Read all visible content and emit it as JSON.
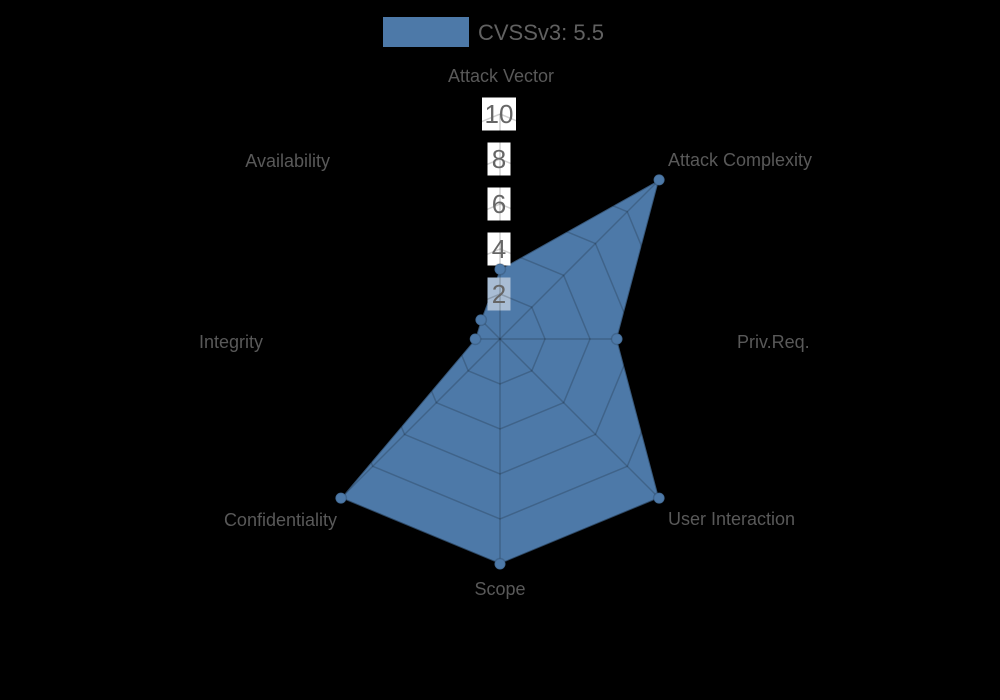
{
  "page": {
    "background": "#000000"
  },
  "legend": {
    "label": "CVSSv3: 5.5",
    "swatch_color": "#4d79a8"
  },
  "chart_data": {
    "type": "radar",
    "title": "CVSSv3: 5.5",
    "categories": [
      "Attack Vector",
      "Attack Complexity",
      "Priv.Req.",
      "User Interaction",
      "Scope",
      "Confidentiality",
      "Integrity",
      "Availability"
    ],
    "series": [
      {
        "name": "CVSSv3: 5.5",
        "color": "#4d79a8",
        "values": [
          3.1,
          10,
          5.2,
          10,
          10,
          10,
          1.1,
          1.2
        ]
      }
    ],
    "radial_ticks": [
      2,
      4,
      6,
      8,
      10
    ],
    "rlim": [
      0,
      10
    ],
    "grid": true,
    "legend_position": "top-center",
    "tick_label_colors": {
      "text": "#666666",
      "box": "#ffffff",
      "box_over_fill": "#a9bdd4"
    },
    "axis_label_color": "#595959",
    "grid_line_color": "rgba(0,0,0,0.18)"
  }
}
